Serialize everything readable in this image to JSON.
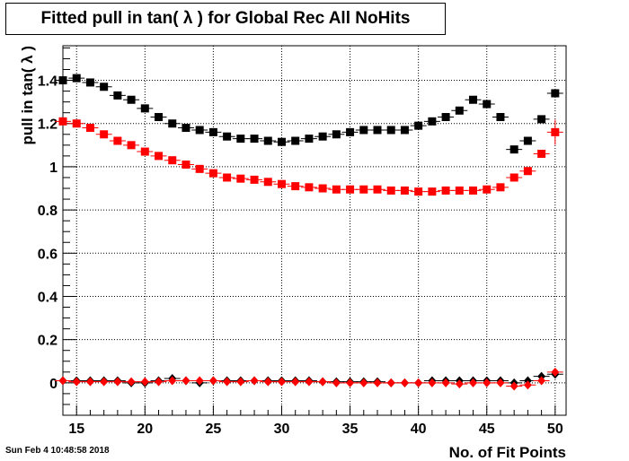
{
  "chart_data": {
    "type": "scatter",
    "title": "Fitted pull in tan( λ ) for Global Rec All NoHits",
    "xlabel": "No. of Fit Points",
    "ylabel": "pull in tan( λ )",
    "xlim": [
      14,
      50.8
    ],
    "ylim": [
      -0.15,
      1.56
    ],
    "grid": true,
    "xticks": [
      15,
      20,
      25,
      30,
      35,
      40,
      45,
      50
    ],
    "yticks": [
      0,
      0.2,
      0.4,
      0.6,
      0.8,
      1,
      1.2,
      1.4
    ],
    "ytick_labels": [
      "0",
      "0.2",
      "0.4",
      "0.6",
      "0.8",
      "1",
      "1.2",
      "1.4"
    ],
    "x": [
      14,
      15,
      16,
      17,
      18,
      19,
      20,
      21,
      22,
      23,
      24,
      25,
      26,
      27,
      28,
      29,
      30,
      31,
      32,
      33,
      34,
      35,
      36,
      37,
      38,
      39,
      40,
      41,
      42,
      43,
      44,
      45,
      46,
      47,
      48,
      49,
      50
    ],
    "series": [
      {
        "marker": "square",
        "color": "#000000",
        "values": [
          1.4,
          1.41,
          1.39,
          1.37,
          1.33,
          1.31,
          1.27,
          1.23,
          1.2,
          1.18,
          1.17,
          1.16,
          1.14,
          1.13,
          1.13,
          1.12,
          1.115,
          1.12,
          1.13,
          1.14,
          1.15,
          1.16,
          1.17,
          1.17,
          1.17,
          1.17,
          1.19,
          1.21,
          1.23,
          1.26,
          1.31,
          1.29,
          1.23,
          1.08,
          1.12,
          1.22,
          1.34
        ]
      },
      {
        "marker": "square",
        "color": "#ff0000",
        "values": [
          1.21,
          1.2,
          1.18,
          1.15,
          1.12,
          1.1,
          1.07,
          1.05,
          1.03,
          1.01,
          0.99,
          0.97,
          0.95,
          0.945,
          0.94,
          0.93,
          0.92,
          0.91,
          0.905,
          0.9,
          0.895,
          0.895,
          0.895,
          0.895,
          0.89,
          0.89,
          0.885,
          0.885,
          0.89,
          0.89,
          0.89,
          0.895,
          0.905,
          0.95,
          0.98,
          1.06,
          1.16
        ]
      },
      {
        "marker": "diamond",
        "color": "#000000",
        "values": [
          0.01,
          0.01,
          0.01,
          0.01,
          0.01,
          0.0,
          0.0,
          0.01,
          0.02,
          0.01,
          0.0,
          0.01,
          0.01,
          0.01,
          0.01,
          0.01,
          0.01,
          0.01,
          0.01,
          0.005,
          0.005,
          0.005,
          0.005,
          0.005,
          0.0,
          0.0,
          0.0,
          0.01,
          0.01,
          0.01,
          0.01,
          0.01,
          0.01,
          0.0,
          0.01,
          0.03,
          0.04
        ]
      },
      {
        "marker": "diamond",
        "color": "#ff0000",
        "values": [
          0.01,
          0.005,
          0.005,
          0.005,
          0.005,
          0.005,
          0.005,
          0.005,
          0.01,
          0.01,
          0.01,
          0.01,
          0.005,
          0.005,
          0.01,
          0.005,
          0.005,
          0.005,
          0.005,
          0.005,
          0.0,
          0.0,
          0.0,
          0.0,
          0.0,
          0.0,
          0.0,
          0.0,
          0.0,
          -0.005,
          0.0,
          0.0,
          0.0,
          -0.015,
          -0.01,
          0.01,
          0.05
        ]
      }
    ]
  },
  "timestamp": "Sun Feb  4 10:48:58 2018"
}
